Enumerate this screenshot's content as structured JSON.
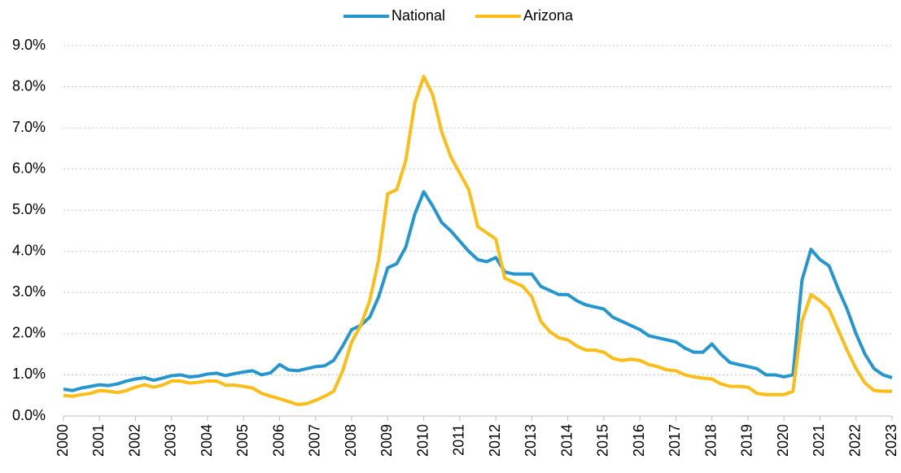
{
  "chart_data": {
    "type": "line",
    "x": [
      2000,
      2000.25,
      2000.5,
      2000.75,
      2001,
      2001.25,
      2001.5,
      2001.75,
      2002,
      2002.25,
      2002.5,
      2002.75,
      2003,
      2003.25,
      2003.5,
      2003.75,
      2004,
      2004.25,
      2004.5,
      2004.75,
      2005,
      2005.25,
      2005.5,
      2005.75,
      2006,
      2006.25,
      2006.5,
      2006.75,
      2007,
      2007.25,
      2007.5,
      2007.75,
      2008,
      2008.25,
      2008.5,
      2008.75,
      2009,
      2009.25,
      2009.5,
      2009.75,
      2010,
      2010.25,
      2010.5,
      2010.75,
      2011,
      2011.25,
      2011.5,
      2011.75,
      2012,
      2012.25,
      2012.5,
      2012.75,
      2013,
      2013.25,
      2013.5,
      2013.75,
      2014,
      2014.25,
      2014.5,
      2014.75,
      2015,
      2015.25,
      2015.5,
      2015.75,
      2016,
      2016.25,
      2016.5,
      2016.75,
      2017,
      2017.25,
      2017.5,
      2017.75,
      2018,
      2018.25,
      2018.5,
      2018.75,
      2019,
      2019.25,
      2019.5,
      2019.75,
      2020,
      2020.25,
      2020.5,
      2020.75,
      2021,
      2021.25,
      2021.5,
      2021.75,
      2022,
      2022.25,
      2022.5,
      2022.75,
      2023
    ],
    "series": [
      {
        "name": "National",
        "color": "#2596d0",
        "values": [
          0.65,
          0.62,
          0.68,
          0.72,
          0.76,
          0.74,
          0.78,
          0.85,
          0.9,
          0.93,
          0.87,
          0.92,
          0.98,
          1.0,
          0.95,
          0.97,
          1.02,
          1.04,
          0.98,
          1.03,
          1.07,
          1.1,
          1.0,
          1.05,
          1.25,
          1.12,
          1.1,
          1.15,
          1.2,
          1.22,
          1.35,
          1.7,
          2.1,
          2.2,
          2.4,
          2.9,
          3.6,
          3.7,
          4.1,
          4.9,
          5.45,
          5.1,
          4.7,
          4.5,
          4.25,
          4.0,
          3.8,
          3.75,
          3.85,
          3.5,
          3.45,
          3.45,
          3.45,
          3.15,
          3.05,
          2.95,
          2.95,
          2.8,
          2.7,
          2.65,
          2.6,
          2.4,
          2.3,
          2.2,
          2.1,
          1.95,
          1.9,
          1.85,
          1.8,
          1.65,
          1.55,
          1.55,
          1.75,
          1.5,
          1.3,
          1.25,
          1.2,
          1.15,
          1.0,
          1.0,
          0.95,
          1.0,
          3.3,
          4.05,
          3.8,
          3.65,
          3.1,
          2.6,
          2.0,
          1.5,
          1.15,
          1.0,
          0.93
        ]
      },
      {
        "name": "Arizona",
        "color": "#fbbd16",
        "values": [
          0.5,
          0.48,
          0.52,
          0.55,
          0.62,
          0.6,
          0.57,
          0.62,
          0.7,
          0.76,
          0.7,
          0.75,
          0.85,
          0.85,
          0.8,
          0.82,
          0.85,
          0.85,
          0.75,
          0.75,
          0.72,
          0.68,
          0.55,
          0.48,
          0.42,
          0.35,
          0.28,
          0.3,
          0.38,
          0.48,
          0.6,
          1.1,
          1.8,
          2.2,
          2.8,
          3.8,
          5.4,
          5.5,
          6.2,
          7.6,
          8.25,
          7.8,
          6.9,
          6.3,
          5.9,
          5.5,
          4.6,
          4.45,
          4.3,
          3.35,
          3.25,
          3.15,
          2.9,
          2.3,
          2.05,
          1.9,
          1.85,
          1.7,
          1.6,
          1.6,
          1.55,
          1.4,
          1.35,
          1.38,
          1.35,
          1.25,
          1.2,
          1.12,
          1.1,
          1.0,
          0.95,
          0.92,
          0.9,
          0.78,
          0.72,
          0.72,
          0.7,
          0.55,
          0.52,
          0.52,
          0.52,
          0.6,
          2.3,
          2.95,
          2.8,
          2.6,
          2.1,
          1.6,
          1.15,
          0.8,
          0.62,
          0.6,
          0.6
        ]
      }
    ],
    "xlim": [
      2000,
      2023
    ],
    "xticks": [
      2000,
      2001,
      2002,
      2003,
      2004,
      2005,
      2006,
      2007,
      2008,
      2009,
      2010,
      2011,
      2012,
      2013,
      2014,
      2015,
      2016,
      2017,
      2018,
      2019,
      2020,
      2021,
      2022,
      2023
    ],
    "ylim": [
      0,
      9
    ],
    "yticks": [
      {
        "value": 0,
        "label": "0.0%"
      },
      {
        "value": 1,
        "label": "1.0%"
      },
      {
        "value": 2,
        "label": "2.0%"
      },
      {
        "value": 3,
        "label": "3.0%"
      },
      {
        "value": 4,
        "label": "4.0%"
      },
      {
        "value": 5,
        "label": "5.0%"
      },
      {
        "value": 6,
        "label": "6.0%"
      },
      {
        "value": 7,
        "label": "7.0%"
      },
      {
        "value": 8,
        "label": "8.0%"
      },
      {
        "value": 9,
        "label": "9.0%"
      }
    ],
    "grid": true,
    "legend": "top"
  }
}
